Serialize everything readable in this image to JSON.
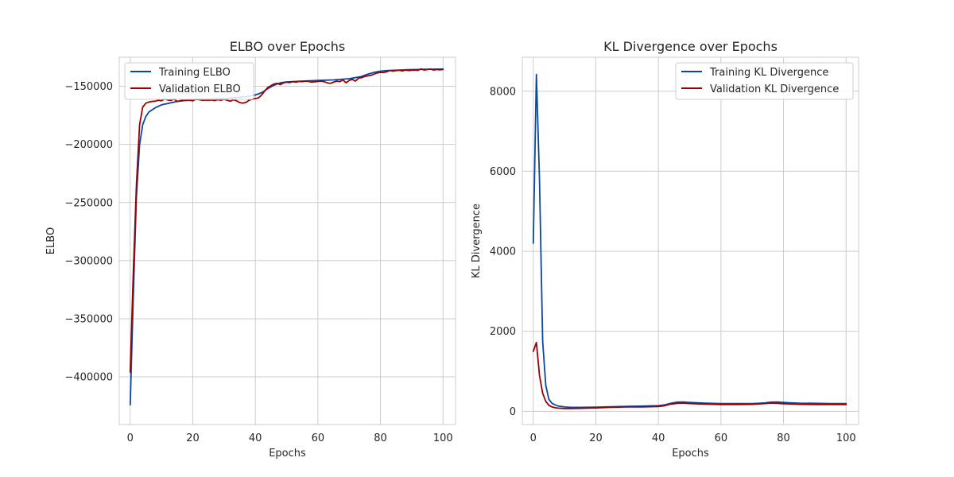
{
  "colors": {
    "training": "#0b47a1",
    "validation": "#990000",
    "grid": "#cccccc"
  },
  "chart_data": [
    {
      "type": "line",
      "title": "ELBO over Epochs",
      "xlabel": "Epochs",
      "ylabel": "ELBO",
      "xlim": [
        -3.5,
        104
      ],
      "ylim": [
        -441000,
        -125000
      ],
      "xticks": [
        0,
        20,
        40,
        60,
        80,
        100
      ],
      "yticks": [
        -400000,
        -350000,
        -300000,
        -250000,
        -200000,
        -150000
      ],
      "xtick_labels": [
        "0",
        "20",
        "40",
        "60",
        "80",
        "100"
      ],
      "ytick_labels": [
        "−400000",
        "−350000",
        "−300000",
        "−250000",
        "−200000",
        "−150000"
      ],
      "grid": true,
      "legend": "upper-left",
      "series": [
        {
          "name": "Training ELBO",
          "color": "#0b47a1",
          "x": [
            0,
            1,
            2,
            3,
            4,
            5,
            6,
            8,
            10,
            15,
            20,
            25,
            30,
            35,
            38,
            40,
            42,
            44,
            46,
            48,
            50,
            55,
            60,
            65,
            70,
            72,
            74,
            76,
            78,
            80,
            82,
            84,
            86,
            88,
            90,
            92,
            94,
            96,
            98,
            100
          ],
          "y": [
            -424000,
            -330000,
            -245000,
            -200000,
            -183000,
            -176000,
            -172000,
            -168500,
            -166000,
            -163000,
            -161500,
            -161000,
            -160500,
            -159500,
            -158500,
            -157500,
            -155500,
            -152000,
            -149000,
            -147000,
            -146200,
            -145500,
            -145000,
            -144500,
            -143500,
            -142500,
            -141500,
            -139500,
            -138000,
            -137000,
            -136500,
            -136200,
            -136000,
            -135800,
            -135600,
            -135500,
            -135400,
            -135300,
            -135200,
            -135200
          ]
        },
        {
          "name": "Validation ELBO",
          "color": "#990000",
          "x": [
            0,
            1,
            2,
            3,
            4,
            5,
            6,
            7,
            8,
            9,
            10,
            11,
            12,
            13,
            14,
            15,
            16,
            17,
            18,
            19,
            20,
            21,
            22,
            23,
            24,
            25,
            26,
            27,
            28,
            29,
            30,
            31,
            32,
            33,
            34,
            35,
            36,
            37,
            38,
            39,
            40,
            41,
            42,
            43,
            44,
            45,
            46,
            47,
            48,
            49,
            50,
            51,
            52,
            53,
            54,
            55,
            56,
            57,
            58,
            59,
            60,
            61,
            62,
            63,
            64,
            65,
            66,
            67,
            68,
            69,
            70,
            71,
            72,
            73,
            74,
            75,
            76,
            77,
            78,
            79,
            80,
            81,
            82,
            83,
            84,
            85,
            86,
            87,
            88,
            89,
            90,
            91,
            92,
            93,
            94,
            95,
            96,
            97,
            98,
            99,
            100
          ],
          "y": [
            -396000,
            -310000,
            -235000,
            -183000,
            -168000,
            -164500,
            -163500,
            -163000,
            -162800,
            -162000,
            -162500,
            -160800,
            -161800,
            -162200,
            -161000,
            -163000,
            -162500,
            -161500,
            -162200,
            -162000,
            -162500,
            -161000,
            -161500,
            -162000,
            -161800,
            -162000,
            -161700,
            -162300,
            -161500,
            -162000,
            -161200,
            -162000,
            -162800,
            -161500,
            -162500,
            -164000,
            -164500,
            -163800,
            -162000,
            -161000,
            -160500,
            -160000,
            -157500,
            -154000,
            -151000,
            -149500,
            -148000,
            -147500,
            -148500,
            -147000,
            -146500,
            -146800,
            -146000,
            -146500,
            -145800,
            -146000,
            -145500,
            -145800,
            -146500,
            -146200,
            -145800,
            -145500,
            -146000,
            -147000,
            -147500,
            -146500,
            -145500,
            -146000,
            -144500,
            -147000,
            -145000,
            -144000,
            -145500,
            -143000,
            -142500,
            -141500,
            -141000,
            -140500,
            -139500,
            -138500,
            -138000,
            -138200,
            -137500,
            -136500,
            -137000,
            -136500,
            -136200,
            -136800,
            -136000,
            -136500,
            -136200,
            -136000,
            -136300,
            -135000,
            -136000,
            -135500,
            -135200,
            -136000,
            -135500,
            -135800,
            -135500
          ]
        }
      ]
    },
    {
      "type": "line",
      "title": "KL Divergence over Epochs",
      "xlabel": "Epochs",
      "ylabel": "KL Divergence",
      "xlim": [
        -3.5,
        104
      ],
      "ylim": [
        -330,
        8850
      ],
      "xticks": [
        0,
        20,
        40,
        60,
        80,
        100
      ],
      "yticks": [
        0,
        2000,
        4000,
        6000,
        8000
      ],
      "xtick_labels": [
        "0",
        "20",
        "40",
        "60",
        "80",
        "100"
      ],
      "ytick_labels": [
        "0",
        "2000",
        "4000",
        "6000",
        "8000"
      ],
      "grid": true,
      "legend": "upper-right",
      "series": [
        {
          "name": "Training KL Divergence",
          "color": "#0b47a1",
          "x": [
            0,
            1,
            2,
            3,
            4,
            5,
            6,
            7,
            8,
            10,
            12,
            15,
            20,
            25,
            30,
            35,
            40,
            42,
            44,
            46,
            48,
            50,
            55,
            60,
            65,
            70,
            72,
            74,
            76,
            78,
            80,
            82,
            85,
            90,
            95,
            100
          ],
          "y": [
            4200,
            8420,
            5800,
            1750,
            650,
            300,
            200,
            160,
            130,
            110,
            100,
            100,
            105,
            115,
            125,
            130,
            140,
            160,
            200,
            230,
            235,
            225,
            205,
            195,
            195,
            195,
            200,
            210,
            230,
            235,
            225,
            215,
            205,
            200,
            195,
            195
          ]
        },
        {
          "name": "Validation KL Divergence",
          "color": "#990000",
          "x": [
            0,
            1,
            2,
            3,
            4,
            5,
            6,
            7,
            8,
            10,
            12,
            15,
            20,
            25,
            30,
            35,
            40,
            42,
            44,
            46,
            48,
            50,
            55,
            60,
            65,
            70,
            72,
            74,
            76,
            78,
            80,
            82,
            85,
            90,
            95,
            100
          ],
          "y": [
            1500,
            1720,
            900,
            450,
            250,
            150,
            110,
            90,
            80,
            70,
            70,
            75,
            85,
            100,
            110,
            110,
            120,
            140,
            180,
            200,
            205,
            195,
            180,
            170,
            170,
            175,
            185,
            195,
            205,
            200,
            190,
            185,
            175,
            170,
            168,
            170
          ]
        }
      ]
    }
  ]
}
